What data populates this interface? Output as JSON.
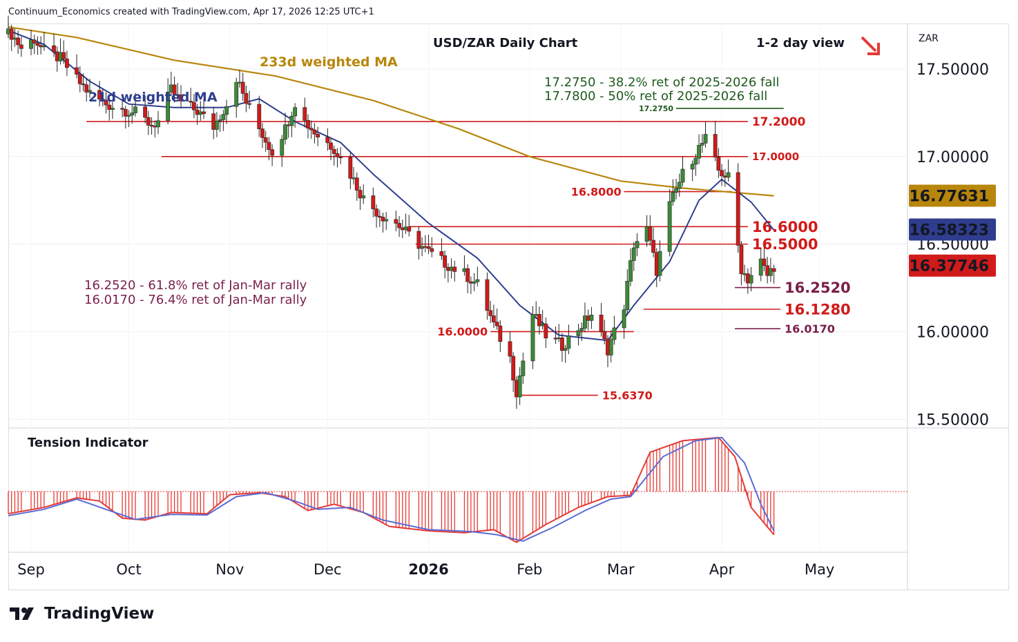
{
  "header": {
    "attribution": "Continuum_Economics created with TradingView.com, Apr 17, 2026 12:25 UTC+1"
  },
  "brand": {
    "name": "TradingView"
  },
  "colors": {
    "up": "#3c8a38",
    "down": "#d11a1a",
    "ma21": "#2f3d8f",
    "ma233": "#b8860b",
    "support": "#7a1f4a",
    "fib": "#1f5a1f",
    "tension_fill": "#e53935",
    "tension_line": "#5b6bd6"
  },
  "chart_data": [
    {
      "type": "candlestick",
      "title": "USD/ZAR Daily Chart",
      "view": "1-2 day view",
      "view_direction": "down",
      "currency_label": "ZAR",
      "y_ticks": [
        "17.50000",
        "17.00000",
        "16.50000",
        "16.00000",
        "15.50000"
      ],
      "ylim": [
        15.45,
        17.76
      ],
      "x_ticks": [
        "Sep",
        "Oct",
        "Nov",
        "Dec",
        "2026",
        "Feb",
        "Mar",
        "Apr",
        "May"
      ],
      "price_badges": [
        {
          "value": "16.77631",
          "series": "233d weighted MA",
          "color": "#b8860b"
        },
        {
          "value": "16.58323",
          "series": "21d weighted MA",
          "color": "#2f3d8f"
        },
        {
          "value": "16.37746",
          "series": "USD/ZAR",
          "color": "#d11a1a"
        }
      ],
      "ma_labels": {
        "ma233": "233d weighted MA",
        "ma21": "21d weighted MA"
      },
      "fib_notes": [
        "17.2750 - 38.2% ret of 2025-2026 fall",
        "17.7800 - 50% ret of 2025-2026 fall"
      ],
      "support_notes": [
        "16.2520 - 61.8% ret of Jan-Mar rally",
        "16.0170 - 76.4% ret of Jan-Mar rally"
      ],
      "levels": [
        {
          "label": "17.2750",
          "value": 17.275,
          "color": "#1f5a1f"
        },
        {
          "label": "17.2000",
          "value": 17.2,
          "color": "#d11a1a"
        },
        {
          "label": "17.0000",
          "value": 17.0,
          "color": "#d11a1a"
        },
        {
          "label": "16.8000",
          "value": 16.8,
          "color": "#d11a1a"
        },
        {
          "label": "16.6000",
          "value": 16.6,
          "color": "#d11a1a"
        },
        {
          "label": "16.5000",
          "value": 16.5,
          "color": "#d11a1a"
        },
        {
          "label": "16.2520",
          "value": 16.252,
          "color": "#7a1f4a"
        },
        {
          "label": "16.1280",
          "value": 16.128,
          "color": "#d11a1a"
        },
        {
          "label": "16.0170",
          "value": 16.017,
          "color": "#7a1f4a"
        },
        {
          "label": "16.0000",
          "value": 16.0,
          "color": "#d11a1a"
        },
        {
          "label": "15.6370",
          "value": 15.637,
          "color": "#d11a1a"
        }
      ],
      "close_path": [
        [
          "2025-08-26",
          17.7
        ],
        [
          "2025-08-29",
          17.62
        ],
        [
          "2025-09-02",
          17.67
        ],
        [
          "2025-09-05",
          17.6
        ],
        [
          "2025-09-10",
          17.56
        ],
        [
          "2025-09-15",
          17.44
        ],
        [
          "2025-09-19",
          17.36
        ],
        [
          "2025-09-24",
          17.3
        ],
        [
          "2025-09-29",
          17.27
        ],
        [
          "2025-10-03",
          17.25
        ],
        [
          "2025-10-08",
          17.18
        ],
        [
          "2025-10-10",
          17.2
        ],
        [
          "2025-10-14",
          17.38
        ],
        [
          "2025-10-17",
          17.31
        ],
        [
          "2025-10-22",
          17.26
        ],
        [
          "2025-10-27",
          17.17
        ],
        [
          "2025-10-31",
          17.3
        ],
        [
          "2025-11-03",
          17.45
        ],
        [
          "2025-11-06",
          17.31
        ],
        [
          "2025-11-10",
          17.16
        ],
        [
          "2025-11-14",
          17.03
        ],
        [
          "2025-11-18",
          17.16
        ],
        [
          "2025-11-21",
          17.31
        ],
        [
          "2025-11-24",
          17.2
        ],
        [
          "2025-11-28",
          17.12
        ],
        [
          "2025-12-03",
          17.05
        ],
        [
          "2025-12-08",
          16.9
        ],
        [
          "2025-12-12",
          16.76
        ],
        [
          "2025-12-17",
          16.67
        ],
        [
          "2025-12-22",
          16.62
        ],
        [
          "2025-12-29",
          16.5
        ],
        [
          "2026-01-02",
          16.44
        ],
        [
          "2026-01-07",
          16.38
        ],
        [
          "2026-01-12",
          16.33
        ],
        [
          "2026-01-16",
          16.27
        ],
        [
          "2026-01-21",
          16.04
        ],
        [
          "2026-01-26",
          15.85
        ],
        [
          "2026-01-28",
          15.66
        ],
        [
          "2026-02-02",
          16.1
        ],
        [
          "2026-02-06",
          15.98
        ],
        [
          "2026-02-11",
          15.92
        ],
        [
          "2026-02-16",
          16.02
        ],
        [
          "2026-02-20",
          16.1
        ],
        [
          "2026-02-25",
          15.9
        ],
        [
          "2026-03-02",
          16.15
        ],
        [
          "2026-03-05",
          16.5
        ],
        [
          "2026-03-09",
          16.58
        ],
        [
          "2026-03-12",
          16.35
        ],
        [
          "2026-03-16",
          16.72
        ],
        [
          "2026-03-20",
          16.9
        ],
        [
          "2026-03-25",
          17.05
        ],
        [
          "2026-03-27",
          17.1
        ],
        [
          "2026-03-31",
          16.92
        ],
        [
          "2026-04-03",
          16.88
        ],
        [
          "2026-04-07",
          16.36
        ],
        [
          "2026-04-09",
          16.3
        ],
        [
          "2026-04-13",
          16.4
        ],
        [
          "2026-04-15",
          16.32
        ],
        [
          "2026-04-17",
          16.377
        ]
      ],
      "ma21_path": [
        [
          "2025-08-25",
          17.72
        ],
        [
          "2025-09-05",
          17.64
        ],
        [
          "2025-09-19",
          17.43
        ],
        [
          "2025-10-01",
          17.3
        ],
        [
          "2025-10-15",
          17.28
        ],
        [
          "2025-10-31",
          17.28
        ],
        [
          "2025-11-10",
          17.33
        ],
        [
          "2025-11-21",
          17.2
        ],
        [
          "2025-12-05",
          17.08
        ],
        [
          "2025-12-15",
          16.9
        ],
        [
          "2026-01-01",
          16.62
        ],
        [
          "2026-01-16",
          16.42
        ],
        [
          "2026-01-29",
          16.15
        ],
        [
          "2026-02-10",
          15.98
        ],
        [
          "2026-02-25",
          15.95
        ],
        [
          "2026-03-05",
          16.15
        ],
        [
          "2026-03-16",
          16.4
        ],
        [
          "2026-03-25",
          16.75
        ],
        [
          "2026-04-01",
          16.87
        ],
        [
          "2026-04-10",
          16.74
        ],
        [
          "2026-04-17",
          16.58
        ]
      ],
      "ma233_path": [
        [
          "2025-08-25",
          17.74
        ],
        [
          "2025-09-15",
          17.68
        ],
        [
          "2025-10-15",
          17.55
        ],
        [
          "2025-11-15",
          17.46
        ],
        [
          "2025-12-15",
          17.32
        ],
        [
          "2026-01-10",
          17.16
        ],
        [
          "2026-02-01",
          17.0
        ],
        [
          "2026-03-01",
          16.86
        ],
        [
          "2026-03-20",
          16.82
        ],
        [
          "2026-04-17",
          16.776
        ]
      ]
    },
    {
      "type": "area",
      "title": "Tension Indicator",
      "area_path": [
        [
          "2025-08-25",
          -0.35
        ],
        [
          "2025-09-05",
          -0.25
        ],
        [
          "2025-09-15",
          -0.1
        ],
        [
          "2025-09-22",
          -0.15
        ],
        [
          "2025-09-29",
          -0.42
        ],
        [
          "2025-10-06",
          -0.45
        ],
        [
          "2025-10-14",
          -0.33
        ],
        [
          "2025-10-25",
          -0.35
        ],
        [
          "2025-11-01",
          -0.05
        ],
        [
          "2025-11-10",
          -0.02
        ],
        [
          "2025-11-18",
          -0.08
        ],
        [
          "2025-11-25",
          -0.3
        ],
        [
          "2025-12-03",
          -0.2
        ],
        [
          "2025-12-12",
          -0.33
        ],
        [
          "2025-12-20",
          -0.55
        ],
        [
          "2026-01-01",
          -0.62
        ],
        [
          "2026-01-12",
          -0.65
        ],
        [
          "2026-01-21",
          -0.6
        ],
        [
          "2026-01-28",
          -0.8
        ],
        [
          "2026-02-06",
          -0.52
        ],
        [
          "2026-02-16",
          -0.25
        ],
        [
          "2026-02-25",
          -0.08
        ],
        [
          "2026-03-04",
          -0.06
        ],
        [
          "2026-03-10",
          0.62
        ],
        [
          "2026-03-20",
          0.8
        ],
        [
          "2026-03-31",
          0.85
        ],
        [
          "2026-04-05",
          0.55
        ],
        [
          "2026-04-10",
          -0.25
        ],
        [
          "2026-04-17",
          -0.68
        ]
      ],
      "line_path": [
        [
          "2025-08-25",
          -0.38
        ],
        [
          "2025-09-05",
          -0.28
        ],
        [
          "2025-09-15",
          -0.12
        ],
        [
          "2025-09-25",
          -0.3
        ],
        [
          "2025-10-03",
          -0.44
        ],
        [
          "2025-10-14",
          -0.36
        ],
        [
          "2025-10-25",
          -0.37
        ],
        [
          "2025-11-03",
          -0.08
        ],
        [
          "2025-11-12",
          -0.02
        ],
        [
          "2025-11-21",
          -0.15
        ],
        [
          "2025-11-28",
          -0.28
        ],
        [
          "2025-12-08",
          -0.25
        ],
        [
          "2025-12-18",
          -0.45
        ],
        [
          "2026-01-01",
          -0.6
        ],
        [
          "2026-01-14",
          -0.63
        ],
        [
          "2026-01-22",
          -0.68
        ],
        [
          "2026-01-30",
          -0.78
        ],
        [
          "2026-02-08",
          -0.57
        ],
        [
          "2026-02-18",
          -0.3
        ],
        [
          "2026-02-26",
          -0.12
        ],
        [
          "2026-03-04",
          -0.08
        ],
        [
          "2026-03-14",
          0.55
        ],
        [
          "2026-03-24",
          0.8
        ],
        [
          "2026-04-01",
          0.85
        ],
        [
          "2026-04-08",
          0.45
        ],
        [
          "2026-04-13",
          -0.2
        ],
        [
          "2026-04-17",
          -0.62
        ]
      ]
    }
  ]
}
